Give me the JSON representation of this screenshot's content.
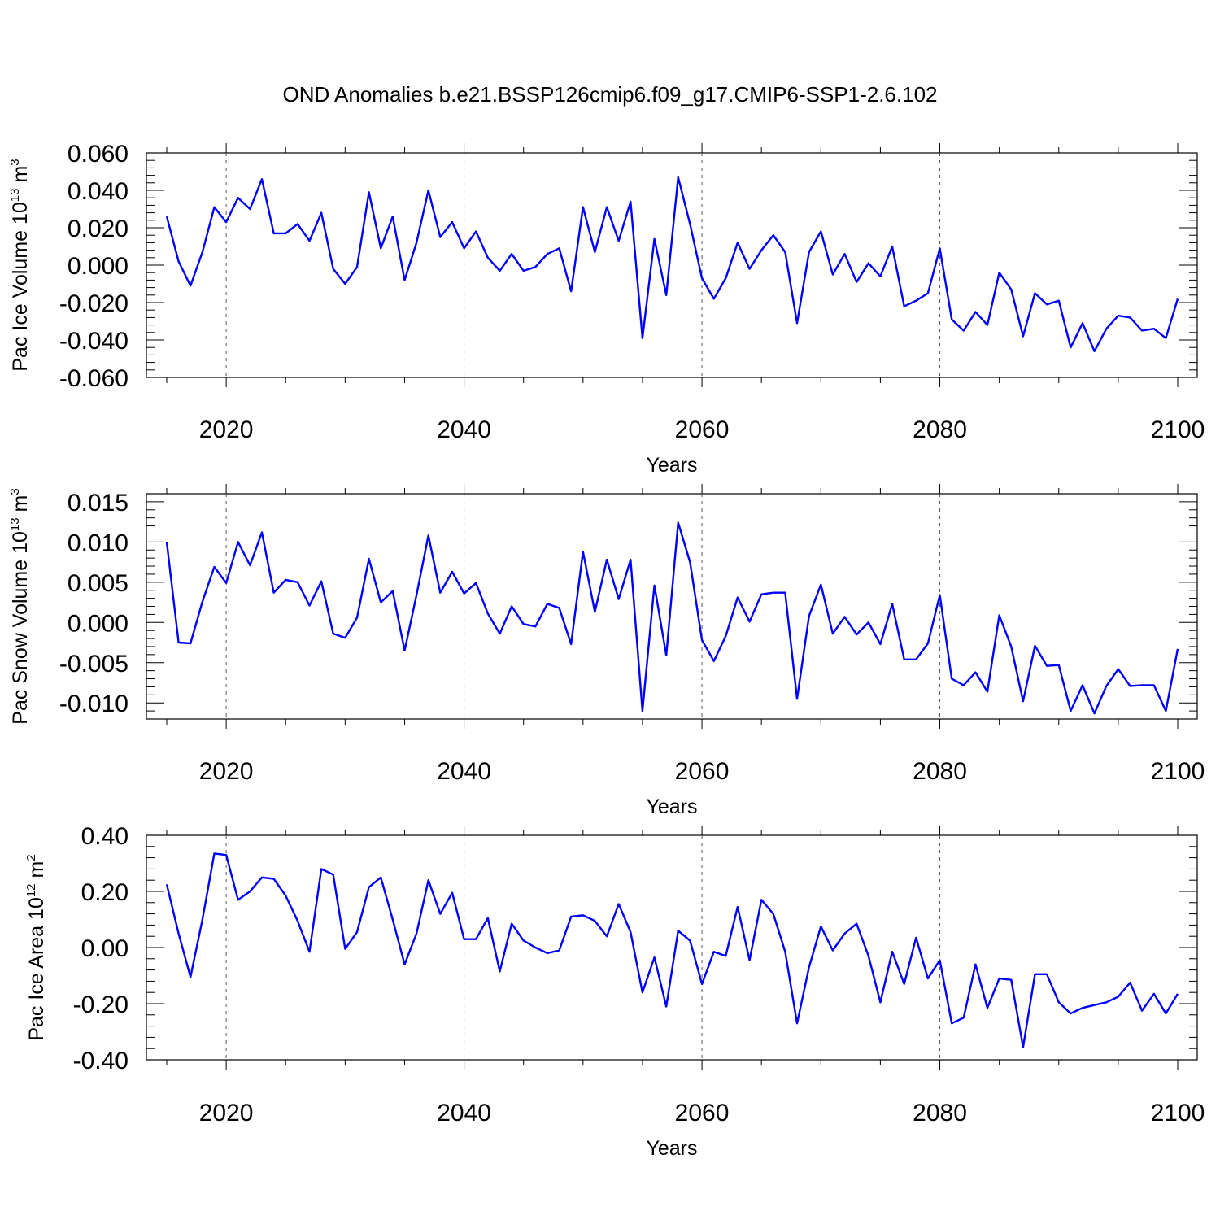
{
  "title": "OND Anomalies b.e21.BSSP126cmip6.f09_g17.CMIP6-SSP1-2.6.102",
  "colors": {
    "line": "#0000ff",
    "axis": "#000000",
    "grid": "#555555"
  },
  "chart_data": [
    {
      "type": "line",
      "title": "OND Anomalies b.e21.BSSP126cmip6.f09_g17.CMIP6-SSP1-2.6.102",
      "xlabel": "Years",
      "ylabel": "Pac Ice Volume 10",
      "ylabel_exp": "13",
      "ylabel_unit": " m",
      "ylabel_unit_exp": "3",
      "xlim": [
        2015,
        2100
      ],
      "ylim": [
        -0.06,
        0.06
      ],
      "xticks": [
        2020,
        2040,
        2060,
        2080,
        2100
      ],
      "xtick_labels": [
        "2020",
        "2040",
        "2060",
        "2080",
        "2100"
      ],
      "yticks": [
        -0.06,
        -0.04,
        -0.02,
        0.0,
        0.02,
        0.04,
        0.06
      ],
      "ytick_labels": [
        "-0.060",
        "-0.040",
        "-0.020",
        "0.000",
        "0.020",
        "0.040",
        "0.060"
      ],
      "grid_x": [
        2020,
        2040,
        2060,
        2080
      ],
      "series": [
        {
          "name": "Pac Ice Volume",
          "x_start": 2015,
          "values": [
            0.026,
            0.002,
            -0.011,
            0.007,
            0.031,
            0.023,
            0.036,
            0.03,
            0.046,
            0.017,
            0.017,
            0.022,
            0.013,
            0.028,
            -0.002,
            -0.01,
            -0.001,
            0.039,
            0.009,
            0.026,
            -0.008,
            0.012,
            0.04,
            0.015,
            0.023,
            0.009,
            0.018,
            0.004,
            -0.003,
            0.006,
            -0.003,
            -0.001,
            0.006,
            0.009,
            -0.014,
            0.031,
            0.007,
            0.031,
            0.013,
            0.034,
            -0.039,
            0.014,
            -0.016,
            0.047,
            0.022,
            -0.007,
            -0.018,
            -0.007,
            0.012,
            -0.002,
            0.008,
            0.016,
            0.007,
            -0.031,
            0.007,
            0.018,
            -0.005,
            0.006,
            -0.009,
            0.001,
            -0.006,
            0.01,
            -0.022,
            -0.019,
            -0.015,
            0.009,
            -0.029,
            -0.035,
            -0.025,
            -0.032,
            -0.004,
            -0.013,
            -0.038,
            -0.015,
            -0.021,
            -0.019,
            -0.044,
            -0.031,
            -0.046,
            -0.034,
            -0.027,
            -0.028,
            -0.035,
            -0.034,
            -0.039,
            -0.018
          ]
        }
      ]
    },
    {
      "type": "line",
      "xlabel": "Years",
      "ylabel": "Pac Snow Volume 10",
      "ylabel_exp": "13",
      "ylabel_unit": " m",
      "ylabel_unit_exp": "3",
      "xlim": [
        2015,
        2100
      ],
      "ylim": [
        -0.012,
        0.016
      ],
      "xticks": [
        2020,
        2040,
        2060,
        2080,
        2100
      ],
      "xtick_labels": [
        "2020",
        "2040",
        "2060",
        "2080",
        "2100"
      ],
      "yticks": [
        -0.01,
        -0.005,
        0.0,
        0.005,
        0.01,
        0.015
      ],
      "ytick_labels": [
        "-0.010",
        "-0.005",
        "0.000",
        "0.005",
        "0.010",
        "0.015"
      ],
      "grid_x": [
        2020,
        2040,
        2060,
        2080
      ],
      "series": [
        {
          "name": "Pac Snow Volume",
          "x_start": 2015,
          "values": [
            0.01,
            -0.0025,
            -0.0026,
            0.0026,
            0.0069,
            0.0049,
            0.01,
            0.0071,
            0.0112,
            0.0037,
            0.0053,
            0.005,
            0.0021,
            0.0051,
            -0.0014,
            -0.0019,
            0.0006,
            0.0079,
            0.0025,
            0.0039,
            -0.0035,
            0.0034,
            0.0108,
            0.0037,
            0.0063,
            0.0036,
            0.0049,
            0.0011,
            -0.0014,
            0.002,
            -0.0002,
            -0.0005,
            0.0023,
            0.0018,
            -0.0027,
            0.0088,
            0.0013,
            0.0078,
            0.0029,
            0.0078,
            -0.011,
            0.0046,
            -0.0041,
            0.0124,
            0.0075,
            -0.0022,
            -0.0048,
            -0.0017,
            0.0031,
            0.0001,
            0.0035,
            0.0037,
            0.0037,
            -0.0095,
            0.0008,
            0.0047,
            -0.0014,
            0.0007,
            -0.0015,
            0.0,
            -0.0027,
            0.0023,
            -0.0046,
            -0.0046,
            -0.0026,
            0.0034,
            -0.007,
            -0.0078,
            -0.0062,
            -0.0086,
            0.0009,
            -0.003,
            -0.0098,
            -0.0029,
            -0.0054,
            -0.0053,
            -0.011,
            -0.0078,
            -0.0113,
            -0.0079,
            -0.0058,
            -0.0079,
            -0.0078,
            -0.0078,
            -0.011,
            -0.0033
          ]
        }
      ]
    },
    {
      "type": "line",
      "xlabel": "Years",
      "ylabel": "Pac Ice Area 10",
      "ylabel_exp": "12",
      "ylabel_unit": " m",
      "ylabel_unit_exp": "2",
      "xlim": [
        2015,
        2100
      ],
      "ylim": [
        -0.4,
        0.4
      ],
      "xticks": [
        2020,
        2040,
        2060,
        2080,
        2100
      ],
      "xtick_labels": [
        "2020",
        "2040",
        "2060",
        "2080",
        "2100"
      ],
      "yticks": [
        -0.4,
        -0.2,
        0.0,
        0.2,
        0.4
      ],
      "ytick_labels": [
        "-0.40",
        "-0.20",
        "0.00",
        "0.20",
        "0.40"
      ],
      "grid_x": [
        2020,
        2040,
        2060,
        2080
      ],
      "series": [
        {
          "name": "Pac Ice Area",
          "x_start": 2015,
          "values": [
            0.225,
            0.05,
            -0.105,
            0.1,
            0.335,
            0.33,
            0.17,
            0.2,
            0.25,
            0.245,
            0.185,
            0.095,
            -0.015,
            0.28,
            0.26,
            -0.005,
            0.055,
            0.215,
            0.25,
            0.1,
            -0.06,
            0.05,
            0.24,
            0.12,
            0.195,
            0.03,
            0.03,
            0.105,
            -0.085,
            0.085,
            0.025,
            0.0,
            -0.02,
            -0.01,
            0.11,
            0.115,
            0.095,
            0.04,
            0.155,
            0.055,
            -0.16,
            -0.035,
            -0.21,
            0.06,
            0.025,
            -0.13,
            -0.015,
            -0.03,
            0.145,
            -0.045,
            0.17,
            0.12,
            -0.015,
            -0.27,
            -0.07,
            0.075,
            -0.01,
            0.05,
            0.085,
            -0.03,
            -0.195,
            -0.015,
            -0.13,
            0.035,
            -0.11,
            -0.045,
            -0.27,
            -0.25,
            -0.06,
            -0.215,
            -0.11,
            -0.115,
            -0.355,
            -0.095,
            -0.095,
            -0.195,
            -0.235,
            -0.215,
            -0.205,
            -0.195,
            -0.175,
            -0.125,
            -0.225,
            -0.165,
            -0.235,
            -0.165
          ]
        }
      ]
    }
  ]
}
